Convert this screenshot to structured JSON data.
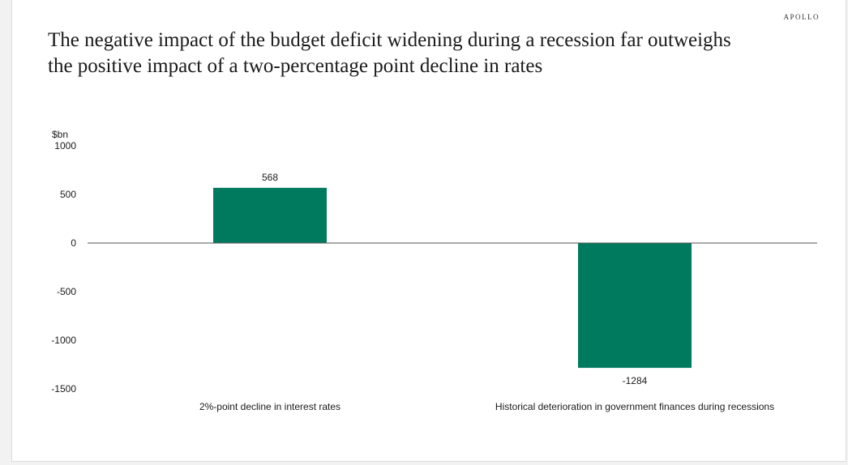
{
  "header": {
    "brand": "APOLLO",
    "title_line1": "The negative impact of the budget deficit widening during a recession far outweighs",
    "title_line2": "the positive impact of a two-percentage point decline in rates"
  },
  "colors": {
    "bar": "#007a5e",
    "axis": "#555555"
  },
  "chart_data": {
    "type": "bar",
    "title": "The negative impact of the budget deficit widening during a recession far outweighs the positive impact of a two-percentage point decline in rates",
    "ylabel": "$bn",
    "xlabel": "",
    "ylim": [
      -1500,
      1000
    ],
    "yticks": [
      1000,
      500,
      0,
      -500,
      -1000,
      -1500
    ],
    "categories": [
      "2%-point decline in interest rates",
      "Historical deterioration in government finances during recessions"
    ],
    "values": [
      568,
      -1284
    ],
    "data_labels": [
      "568",
      "-1284"
    ],
    "legend": "none",
    "grid": false
  }
}
